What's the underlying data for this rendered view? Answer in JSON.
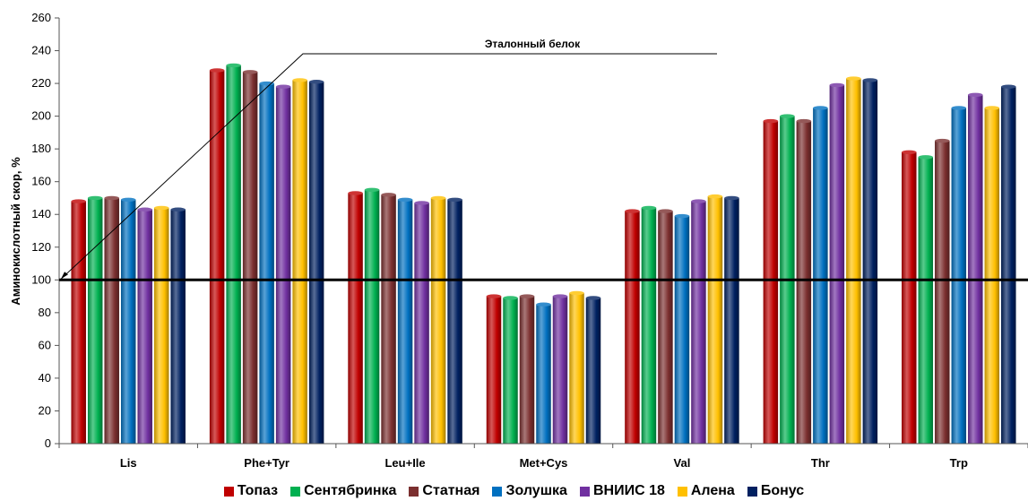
{
  "chart_data": {
    "type": "bar",
    "title": "",
    "xlabel": "",
    "ylabel": "Аминокислотный скор, %",
    "ylim": [
      0,
      260
    ],
    "yticks": [
      0,
      20,
      40,
      60,
      80,
      100,
      120,
      140,
      160,
      180,
      200,
      220,
      240,
      260
    ],
    "grid": false,
    "legend_position": "bottom",
    "categories": [
      "Lis",
      "Phe+Tyr",
      "Leu+Ile",
      "Met+Cys",
      "Val",
      "Thr",
      "Trp"
    ],
    "series": [
      {
        "name": "Топаз",
        "color": "#c00000",
        "values": [
          148,
          228,
          153,
          90,
          142,
          197,
          178
        ]
      },
      {
        "name": "Сентябринка",
        "color": "#00b050",
        "values": [
          150,
          231,
          155,
          89,
          144,
          200,
          175
        ]
      },
      {
        "name": "Статная",
        "color": "#7b2f2f",
        "values": [
          150,
          227,
          152,
          90,
          142,
          197,
          185
        ]
      },
      {
        "name": "Золушка",
        "color": "#0070c0",
        "values": [
          149,
          220,
          149,
          85,
          139,
          205,
          205
        ]
      },
      {
        "name": "ВНИИС 18",
        "color": "#7030a0",
        "values": [
          143,
          218,
          147,
          90,
          148,
          219,
          213
        ]
      },
      {
        "name": "Алена",
        "color": "#ffc000",
        "values": [
          144,
          222,
          150,
          92,
          151,
          223,
          205
        ]
      },
      {
        "name": "Бонус",
        "color": "#002060",
        "values": [
          143,
          221,
          149,
          89,
          150,
          222,
          218
        ]
      }
    ],
    "reference_line": {
      "value": 100,
      "label": "Эталонный белок"
    }
  }
}
